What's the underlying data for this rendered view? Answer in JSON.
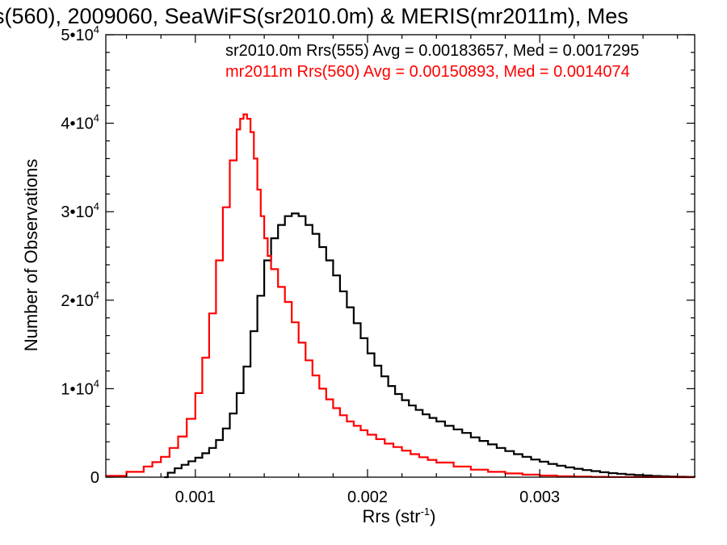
{
  "chart_data": {
    "type": "line",
    "title": "s(560), 2009060, SeaWiFS(sr2010.0m) & MERIS(mr2011m), Mes",
    "xlabel": "Rrs (str",
    "xlabel_sup": "-1",
    "xlabel_close": ")",
    "ylabel": "Number of Observations",
    "xlim": [
      0.00048,
      0.0039
    ],
    "ylim": [
      0,
      50000
    ],
    "x_ticks": [
      {
        "value": 0.001,
        "label": "0.001"
      },
      {
        "value": 0.002,
        "label": "0.002"
      },
      {
        "value": 0.003,
        "label": "0.003"
      }
    ],
    "y_ticks": [
      {
        "value": 0,
        "base": "0",
        "exp": ""
      },
      {
        "value": 10000,
        "base": "1•10",
        "exp": "4"
      },
      {
        "value": 20000,
        "base": "2•10",
        "exp": "4"
      },
      {
        "value": 30000,
        "base": "3•10",
        "exp": "4"
      },
      {
        "value": 40000,
        "base": "4•10",
        "exp": "4"
      },
      {
        "value": 50000,
        "base": "5•10",
        "exp": "4"
      }
    ],
    "legend_placement": "top-right",
    "series": [
      {
        "name": "sr2010.0m Rrs(555) Avg = 0.00183657, Med = 0.0017295",
        "color": "#000000",
        "step": true,
        "x": [
          0.00082,
          0.00084,
          0.00088,
          0.00092,
          0.00096,
          0.001,
          0.00104,
          0.00108,
          0.00112,
          0.00116,
          0.0012,
          0.00124,
          0.00128,
          0.00132,
          0.00136,
          0.0014,
          0.00144,
          0.00148,
          0.00152,
          0.00156,
          0.0016,
          0.00164,
          0.00168,
          0.00172,
          0.00176,
          0.0018,
          0.00184,
          0.00188,
          0.00192,
          0.00196,
          0.002,
          0.00204,
          0.00208,
          0.00212,
          0.00216,
          0.0022,
          0.00224,
          0.00228,
          0.00232,
          0.00236,
          0.0024,
          0.00245,
          0.0025,
          0.00255,
          0.0026,
          0.00265,
          0.0027,
          0.00275,
          0.0028,
          0.00285,
          0.0029,
          0.00295,
          0.003,
          0.00305,
          0.0031,
          0.00315,
          0.0032,
          0.00325,
          0.0033,
          0.00335,
          0.0034,
          0.00345,
          0.0035,
          0.00355,
          0.0036,
          0.00365,
          0.0037,
          0.00375,
          0.0038,
          0.00385,
          0.0039
        ],
        "y": [
          0,
          500,
          1000,
          1400,
          1800,
          2200,
          2700,
          3300,
          4200,
          5500,
          7200,
          9500,
          12500,
          16500,
          20500,
          24500,
          27000,
          28500,
          29500,
          29800,
          29500,
          28500,
          27500,
          26000,
          24500,
          22800,
          21000,
          19200,
          17400,
          15700,
          14000,
          12600,
          11400,
          10300,
          9400,
          8700,
          8100,
          7600,
          7100,
          6700,
          6300,
          5800,
          5400,
          5000,
          4500,
          4100,
          3700,
          3300,
          2950,
          2600,
          2300,
          2000,
          1750,
          1500,
          1300,
          1100,
          950,
          800,
          680,
          560,
          460,
          380,
          300,
          240,
          190,
          140,
          100,
          70,
          50,
          30,
          10
        ]
      },
      {
        "name": "mr2011m Rrs(560) Avg = 0.00150893, Med = 0.0014074",
        "color": "#ff0000",
        "step": true,
        "x": [
          0.00048,
          0.0006,
          0.0007,
          0.00075,
          0.0008,
          0.00085,
          0.0009,
          0.00095,
          0.001,
          0.00104,
          0.00108,
          0.00112,
          0.00116,
          0.0012,
          0.00124,
          0.00126,
          0.00128,
          0.0013,
          0.00132,
          0.00134,
          0.00136,
          0.00138,
          0.0014,
          0.00142,
          0.00144,
          0.00148,
          0.00152,
          0.00156,
          0.0016,
          0.00164,
          0.00168,
          0.00172,
          0.00176,
          0.0018,
          0.00184,
          0.00188,
          0.00192,
          0.00196,
          0.002,
          0.00205,
          0.0021,
          0.00215,
          0.0022,
          0.00225,
          0.0023,
          0.00235,
          0.0024,
          0.0025,
          0.0026,
          0.0027,
          0.0028,
          0.0029,
          0.003,
          0.0031,
          0.0032,
          0.0033,
          0.0034,
          0.0036,
          0.0038,
          0.0039
        ],
        "y": [
          150,
          600,
          1200,
          1700,
          2300,
          3300,
          4600,
          6600,
          9500,
          13500,
          18500,
          24500,
          30500,
          35800,
          39300,
          40500,
          41000,
          40500,
          39000,
          36000,
          32500,
          29500,
          27000,
          25000,
          23500,
          21500,
          19800,
          17500,
          15200,
          13200,
          11500,
          10000,
          8800,
          7800,
          7000,
          6300,
          5800,
          5300,
          4800,
          4300,
          3800,
          3400,
          3000,
          2600,
          2250,
          1950,
          1650,
          1200,
          850,
          600,
          420,
          280,
          180,
          110,
          70,
          40,
          20,
          8,
          3,
          0
        ]
      }
    ]
  }
}
